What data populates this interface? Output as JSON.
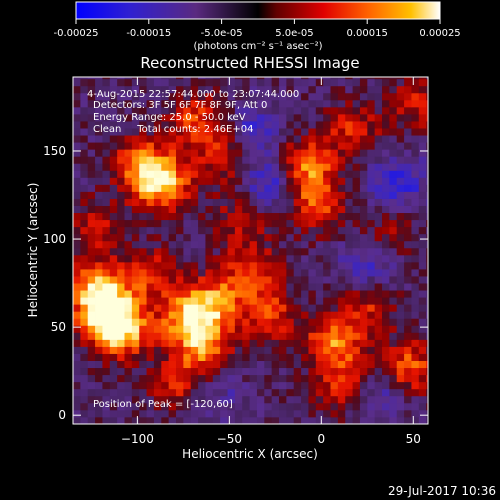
{
  "colorbar": {
    "tick_labels": [
      "-0.00025",
      "-0.00015",
      "-5.0e-05",
      "5.0e-05",
      "0.00015",
      "0.00025"
    ],
    "units": "(photons cm⁻² s⁻¹ asec⁻²)",
    "range": [
      -0.00025,
      0.00025
    ],
    "colormap": [
      "#0000ff",
      "#4a2cb6",
      "#5b2a6e",
      "#000000",
      "#c00000",
      "#ff5500",
      "#ffb000",
      "#ffffff"
    ]
  },
  "chart_data": {
    "type": "heatmap",
    "title": "Reconstructed RHESSI Image",
    "xlabel": "Heliocentric X (arcsec)",
    "ylabel": "Heliocentric Y (arcsec)",
    "xlim": [
      -135,
      58
    ],
    "ylim": [
      -5,
      192
    ],
    "xticks": [
      -100,
      -50,
      0,
      50
    ],
    "xtick_labels": [
      "−100",
      "−50",
      "0",
      "50"
    ],
    "yticks": [
      0,
      50,
      100,
      150
    ],
    "ytick_labels": [
      "0",
      "50",
      "100",
      "150"
    ],
    "annotations": [
      "4-Aug-2015 22:57:44.000 to 23:07:44.000",
      "Detectors: 3F 5F 6F 7F 8F 9F, Att 0",
      "Energy Range: 25.0 - 50.0 keV",
      "Clean     Total counts: 2.46E+04"
    ],
    "peak_annotation": "Position of Peak = [-120,60]",
    "peak_position": [
      -120,
      60
    ],
    "hotspots": [
      {
        "x": -118,
        "y": 55,
        "v": 1.0
      },
      {
        "x": -125,
        "y": 70,
        "v": 0.8
      },
      {
        "x": -110,
        "y": 45,
        "v": 0.75
      },
      {
        "x": -95,
        "y": 78,
        "v": 0.55
      },
      {
        "x": -75,
        "y": 52,
        "v": 0.85
      },
      {
        "x": -60,
        "y": 62,
        "v": 0.7
      },
      {
        "x": -65,
        "y": 35,
        "v": 0.6
      },
      {
        "x": -80,
        "y": 15,
        "v": 0.5
      },
      {
        "x": -88,
        "y": 130,
        "v": 0.9
      },
      {
        "x": -100,
        "y": 140,
        "v": 0.7
      },
      {
        "x": -70,
        "y": 165,
        "v": 0.6
      },
      {
        "x": -125,
        "y": 105,
        "v": 0.45
      },
      {
        "x": -40,
        "y": 80,
        "v": 0.6
      },
      {
        "x": -30,
        "y": 55,
        "v": 0.55
      },
      {
        "x": -10,
        "y": 140,
        "v": 0.75
      },
      {
        "x": -5,
        "y": 118,
        "v": 0.6
      },
      {
        "x": 15,
        "y": 160,
        "v": 0.5
      },
      {
        "x": 5,
        "y": 40,
        "v": 0.75
      },
      {
        "x": 10,
        "y": 15,
        "v": 0.55
      },
      {
        "x": 25,
        "y": 60,
        "v": 0.45
      },
      {
        "x": 35,
        "y": 100,
        "v": 0.4
      },
      {
        "x": 45,
        "y": 25,
        "v": 0.7
      },
      {
        "x": 50,
        "y": 175,
        "v": 0.45
      },
      {
        "x": -45,
        "y": 110,
        "v": 0.4
      },
      {
        "x": -55,
        "y": 145,
        "v": 0.5
      }
    ],
    "coldspots": [
      {
        "x": -30,
        "y": 130,
        "v": -0.55
      },
      {
        "x": 40,
        "y": 130,
        "v": -0.5
      },
      {
        "x": 25,
        "y": 85,
        "v": -0.45
      },
      {
        "x": 30,
        "y": 10,
        "v": -0.4
      },
      {
        "x": -40,
        "y": 160,
        "v": -0.4
      },
      {
        "x": -60,
        "y": 10,
        "v": -0.3
      }
    ]
  },
  "timestamp": "29-Jul-2017 10:36"
}
